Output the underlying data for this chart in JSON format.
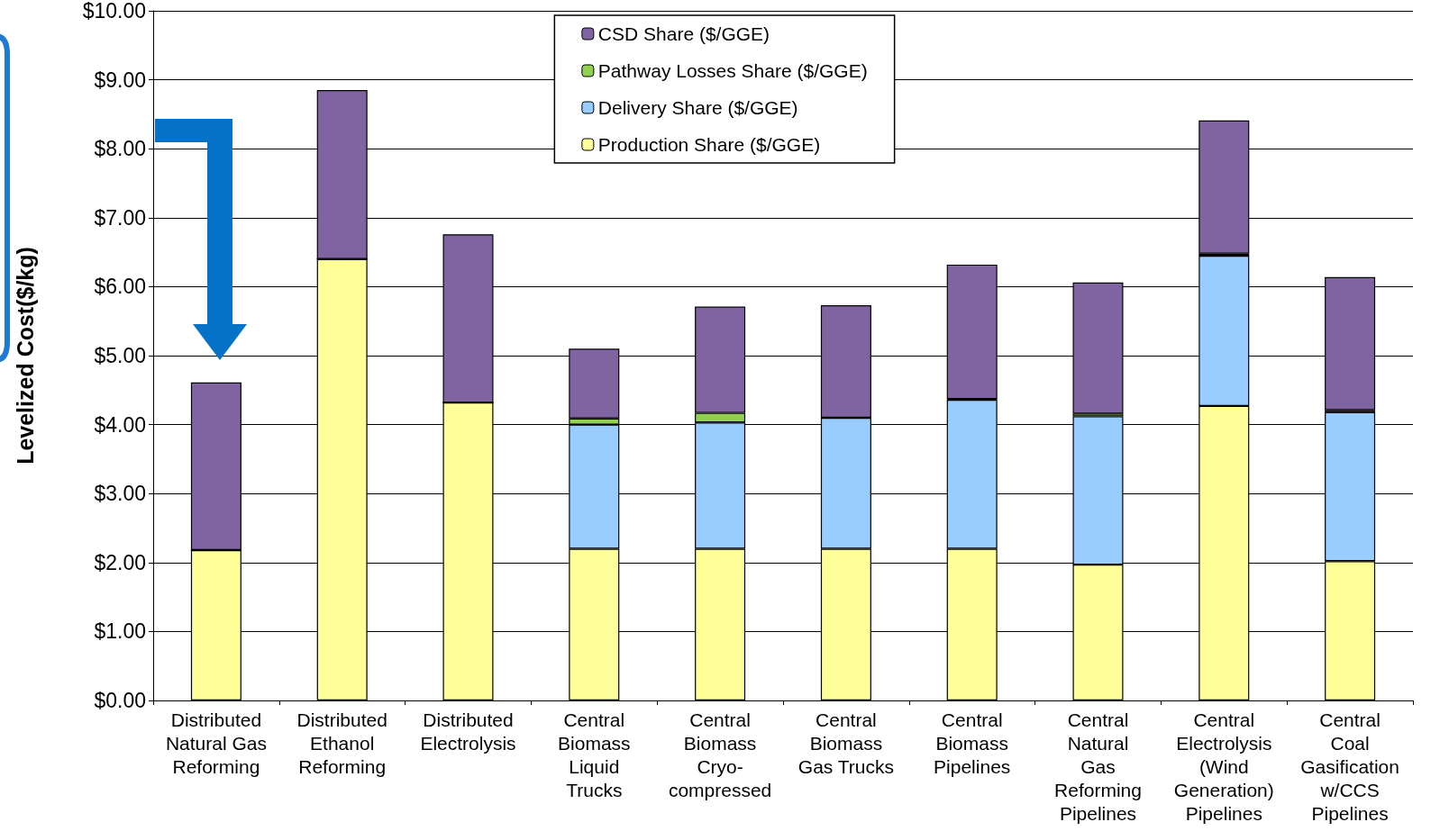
{
  "chart_data": {
    "type": "bar",
    "stacked": true,
    "ylabel": "Levelized Cost($/kg)",
    "categories": [
      "Distributed\nNatural Gas\nReforming",
      "Distributed\nEthanol\nReforming",
      "Distributed\nElectrolysis",
      "Central\nBiomass\nLiquid\nTrucks",
      "Central\nBiomass\nCryo-\ncompressed",
      "Central\nBiomass\nGas Trucks",
      "Central\nBiomass\nPipelines",
      "Central\nNatural\nGas\nReforming\nPipelines",
      "Central\nElectrolysis\n(Wind\nGeneration)\nPipelines",
      "Central\nCoal\nGasification\nw/CCS\nPipelines"
    ],
    "series": [
      {
        "name": "Production Share ($/GGE)",
        "color": "#ffff99",
        "values": [
          2.18,
          6.4,
          4.32,
          2.2,
          2.2,
          2.2,
          2.2,
          1.97,
          4.27,
          2.02
        ]
      },
      {
        "name": "Delivery Share ($/GGE)",
        "color": "#99ccff",
        "values": [
          0,
          0,
          0,
          1.8,
          1.83,
          1.9,
          2.16,
          2.15,
          2.18,
          2.16
        ]
      },
      {
        "name": "Pathway Losses Share ($/GGE)",
        "color": "#92d050",
        "values": [
          0,
          0,
          0,
          0.09,
          0.14,
          null,
          0.01,
          0.04,
          0.03,
          0.03
        ]
      },
      {
        "name": "CSD Share ($/GGE)",
        "color": "#8064a2",
        "values": [
          2.43,
          2.45,
          2.44,
          1.01,
          1.54,
          1.63,
          1.95,
          1.9,
          1.93,
          1.93
        ]
      }
    ],
    "ylim": [
      0,
      10
    ],
    "yticks": [
      {
        "value": 0,
        "label": "$0.00"
      },
      {
        "value": 1,
        "label": "$1.00"
      },
      {
        "value": 2,
        "label": "$2.00"
      },
      {
        "value": 3,
        "label": "$3.00"
      },
      {
        "value": 4,
        "label": "$4.00"
      },
      {
        "value": 5,
        "label": "$5.00"
      },
      {
        "value": 6,
        "label": "$6.00"
      },
      {
        "value": 7,
        "label": "$7.00"
      },
      {
        "value": 8,
        "label": "$8.00"
      },
      {
        "value": 9,
        "label": "$9.00"
      },
      {
        "value": 10,
        "label": "$10.00"
      }
    ],
    "grid": "y",
    "legend": "top"
  }
}
